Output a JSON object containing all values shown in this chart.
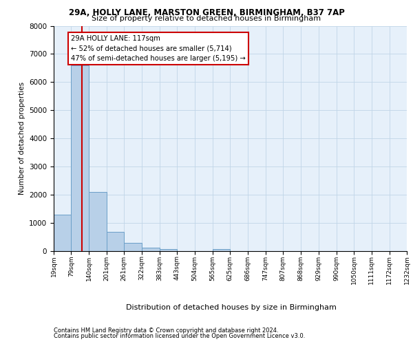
{
  "title_line1": "29A, HOLLY LANE, MARSTON GREEN, BIRMINGHAM, B37 7AP",
  "title_line2": "Size of property relative to detached houses in Birmingham",
  "xlabel": "Distribution of detached houses by size in Birmingham",
  "ylabel": "Number of detached properties",
  "footnote1": "Contains HM Land Registry data © Crown copyright and database right 2024.",
  "footnote2": "Contains public sector information licensed under the Open Government Licence v3.0.",
  "annotation_line1": "29A HOLLY LANE: 117sqm",
  "annotation_line2": "← 52% of detached houses are smaller (5,714)",
  "annotation_line3": "47% of semi-detached houses are larger (5,195) →",
  "property_size": 117,
  "bin_edges": [
    19,
    79,
    140,
    201,
    261,
    322,
    383,
    443,
    504,
    565,
    625,
    686,
    747,
    807,
    868,
    929,
    990,
    1050,
    1111,
    1172,
    1232
  ],
  "bar_heights": [
    1300,
    6600,
    2100,
    680,
    300,
    115,
    70,
    0,
    0,
    70,
    0,
    0,
    0,
    0,
    0,
    0,
    0,
    0,
    0,
    0
  ],
  "bar_face_color": "#b8d0e8",
  "bar_edge_color": "#6a9fc8",
  "vline_color": "#cc0000",
  "ylim": [
    0,
    8000
  ],
  "yticks": [
    0,
    1000,
    2000,
    3000,
    4000,
    5000,
    6000,
    7000,
    8000
  ],
  "grid_color": "#c0d5e8",
  "axes_bg_color": "#e6f0fa",
  "annotation_fc": "#ffffff",
  "annotation_ec": "#cc0000"
}
